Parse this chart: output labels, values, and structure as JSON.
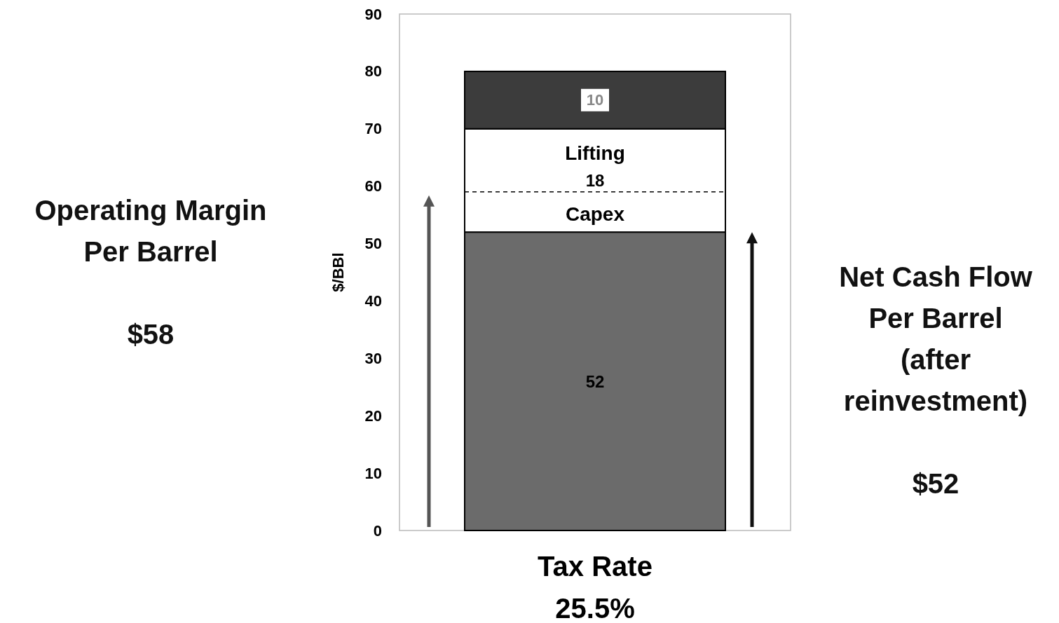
{
  "chart_data": {
    "type": "bar",
    "stacked": true,
    "categories": [
      "Tax Rate 25.5%"
    ],
    "series": [
      {
        "color": "#6b6b6b",
        "values": [
          52
        ]
      },
      {
        "color": "#ffffff",
        "values": [
          18
        ]
      },
      {
        "color": "#3c3c3c",
        "values": [
          10
        ]
      }
    ],
    "ylabel": "$/BBl",
    "ylim": [
      0,
      90
    ],
    "yticks": [
      0,
      10,
      20,
      30,
      40,
      50,
      60,
      70,
      80,
      90
    ],
    "data_labels": true,
    "grid": false,
    "ref_lines": [
      {
        "axis": "y",
        "value": 59,
        "line_style": "dashed",
        "color": "#000000"
      }
    ],
    "annotations": [
      "Operating Margin\nPer Barrel\n\n$58",
      "Net Cash Flow\nPer Barrel\n(after\nreinvestment)\n\n$52",
      "Lifting",
      "Capex"
    ]
  }
}
